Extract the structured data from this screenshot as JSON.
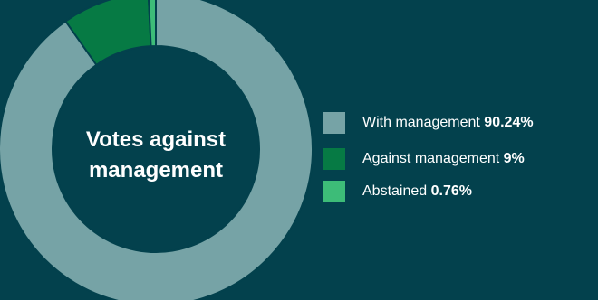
{
  "chart_data": {
    "type": "pie",
    "variant": "donut",
    "title": "Votes against management",
    "center_label_lines": [
      "Votes against",
      "management"
    ],
    "categories": [
      "With management",
      "Against management",
      "Abstained"
    ],
    "values": [
      90.24,
      9,
      0.76
    ],
    "value_labels": [
      "90.24%",
      "9%",
      "0.76%"
    ],
    "unit": "%",
    "legend_position": "right",
    "colors": [
      "#76a3a6",
      "#067a44",
      "#3dbc78"
    ]
  },
  "background_color": "#03414d",
  "text_color": "#ffffff",
  "separator_color": "#03414d"
}
